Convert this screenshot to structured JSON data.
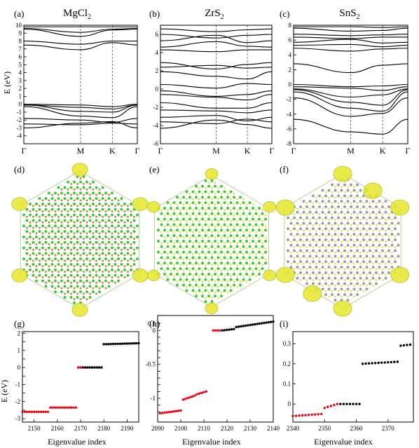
{
  "figure": {
    "titles": [
      {
        "pre": "MgCl",
        "sub": "2"
      },
      {
        "pre": "ZrS",
        "sub": "2"
      },
      {
        "pre": "SnS",
        "sub": "2"
      }
    ],
    "tags": [
      "(a)",
      "(b)",
      "(c)",
      "(d)",
      "(e)",
      "(f)",
      "(g)",
      "(h)",
      "(i)"
    ],
    "band_ylabel": "E (eV)",
    "eig_ylabel": "E (eV)",
    "eig_xlabel": "Eigenvalue index",
    "kpoints": [
      "Γ",
      "M",
      "K",
      "Γ"
    ]
  },
  "colors": {
    "band_line": "#000000",
    "occupied": "#e8000b",
    "unoccupied": "#000000",
    "isosurface": "#e6e62a",
    "mg": "#d4743a",
    "cl": "#3ec83e",
    "zr": "#3ec83e",
    "s": "#e8e83c",
    "sn": "#9a9ab8"
  },
  "chart_data": [
    {
      "type": "line",
      "title": "MgCl2",
      "xlabel": "",
      "ylabel": "E (eV)",
      "kpath": [
        "Γ",
        "M",
        "K",
        "Γ"
      ],
      "kpath_fracs": [
        0,
        0.5,
        0.78,
        1.0
      ],
      "ylim": [
        -5,
        10
      ],
      "yticks": [
        -4,
        -3,
        -2,
        -1,
        0,
        1,
        2,
        3,
        4,
        5,
        6,
        7,
        8,
        9,
        10
      ],
      "series": [
        {
          "values": [
            9.8,
            9.8,
            9.8,
            9.8
          ]
        },
        {
          "values": [
            9.6,
            9.1,
            9.5,
            9.6
          ]
        },
        {
          "values": [
            9.5,
            8.6,
            9.4,
            9.5
          ]
        },
        {
          "values": [
            8.0,
            7.6,
            8.0,
            8.0
          ]
        },
        {
          "values": [
            7.5,
            6.9,
            7.8,
            7.5
          ]
        },
        {
          "values": [
            0.0,
            -0.1,
            -0.3,
            0.0
          ]
        },
        {
          "values": [
            -0.1,
            -0.4,
            -0.6,
            -0.1
          ]
        },
        {
          "values": [
            -0.1,
            -0.9,
            -1.0,
            -0.1
          ]
        },
        {
          "values": [
            -0.3,
            -1.5,
            -1.7,
            -0.3
          ]
        },
        {
          "values": [
            -1.8,
            -2.0,
            -2.3,
            -1.8
          ]
        },
        {
          "values": [
            -2.5,
            -2.6,
            -2.4,
            -2.5
          ]
        },
        {
          "values": [
            -3.0,
            -2.4,
            -2.2,
            -3.0
          ]
        }
      ]
    },
    {
      "type": "line",
      "title": "ZrS2",
      "xlabel": "",
      "ylabel": "",
      "kpath": [
        "Γ",
        "M",
        "K",
        "Γ"
      ],
      "kpath_fracs": [
        0,
        0.5,
        0.78,
        1.0
      ],
      "ylim": [
        -6,
        7
      ],
      "yticks": [
        -6,
        -4,
        -2,
        0,
        2,
        4,
        6
      ],
      "series": [
        {
          "values": [
            6.6,
            6.3,
            6.5,
            6.6
          ]
        },
        {
          "values": [
            6.0,
            5.6,
            5.9,
            6.0
          ]
        },
        {
          "values": [
            5.3,
            5.9,
            5.1,
            5.3
          ]
        },
        {
          "values": [
            4.6,
            5.2,
            4.7,
            4.6
          ]
        },
        {
          "values": [
            4.3,
            4.1,
            4.3,
            4.3
          ]
        },
        {
          "values": [
            2.9,
            2.2,
            2.7,
            2.9
          ]
        },
        {
          "values": [
            2.4,
            2.6,
            2.3,
            2.4
          ]
        },
        {
          "values": [
            1.9,
            1.4,
            1.1,
            1.9
          ]
        },
        {
          "values": [
            0.5,
            0.1,
            0.6,
            0.5
          ]
        },
        {
          "values": [
            -0.2,
            -0.8,
            -0.6,
            -0.2
          ]
        },
        {
          "values": [
            -0.6,
            -0.9,
            -1.2,
            -0.6
          ]
        },
        {
          "values": [
            -1.5,
            -2.1,
            -2.1,
            -1.5
          ]
        },
        {
          "values": [
            -2.3,
            -2.4,
            -2.6,
            -2.3
          ]
        },
        {
          "values": [
            -3.1,
            -2.9,
            -3.5,
            -3.1
          ]
        },
        {
          "values": [
            -3.6,
            -3.8,
            -3.3,
            -3.6
          ]
        },
        {
          "values": [
            -4.3,
            -3.4,
            -3.9,
            -4.3
          ]
        }
      ]
    },
    {
      "type": "line",
      "title": "SnS2",
      "xlabel": "",
      "ylabel": "",
      "kpath": [
        "Γ",
        "M",
        "K",
        "Γ"
      ],
      "kpath_fracs": [
        0,
        0.5,
        0.78,
        1.0
      ],
      "ylim": [
        -8,
        8
      ],
      "yticks": [
        -8,
        -6,
        -4,
        -2,
        0,
        2,
        4,
        6,
        8
      ],
      "series": [
        {
          "values": [
            7.8,
            7.8,
            7.7,
            7.8
          ]
        },
        {
          "values": [
            7.6,
            7.2,
            7.3,
            7.6
          ]
        },
        {
          "values": [
            6.8,
            6.6,
            6.7,
            6.8
          ]
        },
        {
          "values": [
            6.4,
            6.2,
            6.4,
            6.4
          ]
        },
        {
          "values": [
            5.7,
            6.1,
            5.6,
            5.7
          ]
        },
        {
          "values": [
            5.3,
            5.4,
            5.1,
            5.3
          ]
        },
        {
          "values": [
            4.9,
            4.5,
            4.8,
            4.9
          ]
        },
        {
          "values": [
            2.8,
            1.6,
            2.6,
            2.8
          ]
        },
        {
          "values": [
            0.0,
            -0.3,
            -0.2,
            0.0
          ]
        },
        {
          "values": [
            -0.3,
            -0.5,
            -0.8,
            -0.3
          ]
        },
        {
          "values": [
            -0.6,
            -1.7,
            -1.4,
            -0.6
          ]
        },
        {
          "values": [
            -0.7,
            -2.4,
            -2.8,
            -0.7
          ]
        },
        {
          "values": [
            -1.0,
            -3.2,
            -3.6,
            -1.0
          ]
        },
        {
          "values": [
            -1.8,
            -4.3,
            -3.9,
            -1.8
          ]
        },
        {
          "values": [
            -4.7,
            -6.4,
            -6.7,
            -4.7
          ]
        }
      ]
    },
    {
      "type": "scatter",
      "title": "",
      "xlabel": "Eigenvalue index",
      "ylabel": "E (eV)",
      "xlim": [
        2145,
        2195
      ],
      "xticks": [
        2150,
        2160,
        2170,
        2180,
        2190
      ],
      "ylim": [
        -3.2,
        2.1
      ],
      "yticks": [
        -3,
        -2.5,
        -2,
        -1.5,
        -1,
        -0.5,
        0,
        0.5,
        1,
        1.5,
        2
      ],
      "ytick_labels": [
        "-3",
        "",
        "-2",
        "",
        "-1",
        "",
        "0",
        "",
        "1",
        "",
        "2"
      ],
      "groups": [
        {
          "occupied": true,
          "x0": 2145,
          "x1": 2156,
          "y0": -2.6,
          "y1": -2.6
        },
        {
          "occupied": true,
          "x0": 2157,
          "x1": 2168,
          "y0": -2.35,
          "y1": -2.35
        },
        {
          "occupied": true,
          "x0": 2169,
          "x1": 2170,
          "y0": 0.0,
          "y1": 0.0
        },
        {
          "occupied": false,
          "x0": 2171,
          "x1": 2179,
          "y0": 0.0,
          "y1": 0.0
        },
        {
          "occupied": false,
          "x0": 2180,
          "x1": 2195,
          "y0": 1.36,
          "y1": 1.42
        }
      ]
    },
    {
      "type": "scatter",
      "title": "",
      "xlabel": "Eigenvalue index",
      "ylabel": "",
      "xlim": [
        2090,
        2140
      ],
      "xticks": [
        2090,
        2100,
        2110,
        2120,
        2130,
        2140
      ],
      "ylim": [
        -1.35,
        0.22
      ],
      "yticks": [
        -1.2,
        -1.1,
        -1,
        -0.9,
        -0.8,
        -0.7,
        -0.6,
        -0.5,
        -0.4,
        -0.3,
        -0.2,
        -0.1,
        0,
        0.1
      ],
      "ytick_labels": [
        "",
        "",
        "-1",
        "",
        "",
        "",
        "",
        "-0.5",
        "",
        "",
        "",
        "",
        "0",
        "0.1"
      ],
      "groups": [
        {
          "occupied": true,
          "x0": 2091,
          "x1": 2100,
          "y0": -1.22,
          "y1": -1.18
        },
        {
          "occupied": true,
          "x0": 2101,
          "x1": 2106,
          "y0": -1.02,
          "y1": -0.96
        },
        {
          "occupied": true,
          "x0": 2107,
          "x1": 2111,
          "y0": -0.94,
          "y1": -0.9
        },
        {
          "occupied": true,
          "x0": 2114,
          "x1": 2117,
          "y0": 0.0,
          "y1": 0.0
        },
        {
          "occupied": false,
          "x0": 2118,
          "x1": 2123,
          "y0": 0.0,
          "y1": 0.02
        },
        {
          "occupied": false,
          "x0": 2124,
          "x1": 2140,
          "y0": 0.05,
          "y1": 0.13
        }
      ]
    },
    {
      "type": "scatter",
      "title": "",
      "xlabel": "Eigenvalue index",
      "ylabel": "",
      "xlim": [
        2340,
        2378
      ],
      "xticks": [
        2340,
        2350,
        2360,
        2370
      ],
      "ylim": [
        -0.09,
        0.36
      ],
      "yticks": [
        0,
        0.1,
        0.2,
        0.3
      ],
      "ytick_labels": [
        "0",
        "0.1",
        "0.2",
        "0.3"
      ],
      "groups": [
        {
          "occupied": true,
          "x0": 2340,
          "x1": 2349,
          "y0": -0.06,
          "y1": -0.05
        },
        {
          "occupied": true,
          "x0": 2350,
          "x1": 2354,
          "y0": -0.02,
          "y1": 0.0
        },
        {
          "occupied": false,
          "x0": 2355,
          "x1": 2361,
          "y0": 0.0,
          "y1": 0.0
        },
        {
          "occupied": false,
          "x0": 2362,
          "x1": 2373,
          "y0": 0.2,
          "y1": 0.21
        },
        {
          "occupied": false,
          "x0": 2374,
          "x1": 2377,
          "y0": 0.29,
          "y1": 0.295
        }
      ]
    }
  ]
}
